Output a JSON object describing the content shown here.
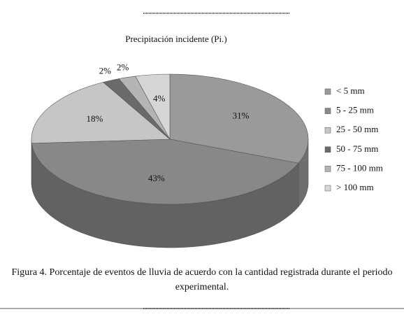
{
  "chart_data": {
    "type": "pie3d",
    "title": "Precipitación incidente (Pi.)",
    "categories": [
      "< 5 mm",
      "5 - 25 mm",
      "25 - 50 mm",
      "50 - 75 mm",
      "75 - 100 mm",
      "> 100 mm"
    ],
    "values": [
      31,
      43,
      18,
      2,
      2,
      4
    ],
    "value_labels": [
      "31%",
      "43%",
      "18%",
      "2%",
      "2%",
      "4%"
    ],
    "colors": [
      "#9a9a9a",
      "#888888",
      "#c6c6c6",
      "#6a6a6a",
      "#b4b4b4",
      "#d6d6d6"
    ],
    "caption_lines": [
      "Figura 4. Porcentaje de eventos de lluvia de acuerdo con la cantidad registrada durante el periodo",
      "experimental."
    ]
  }
}
